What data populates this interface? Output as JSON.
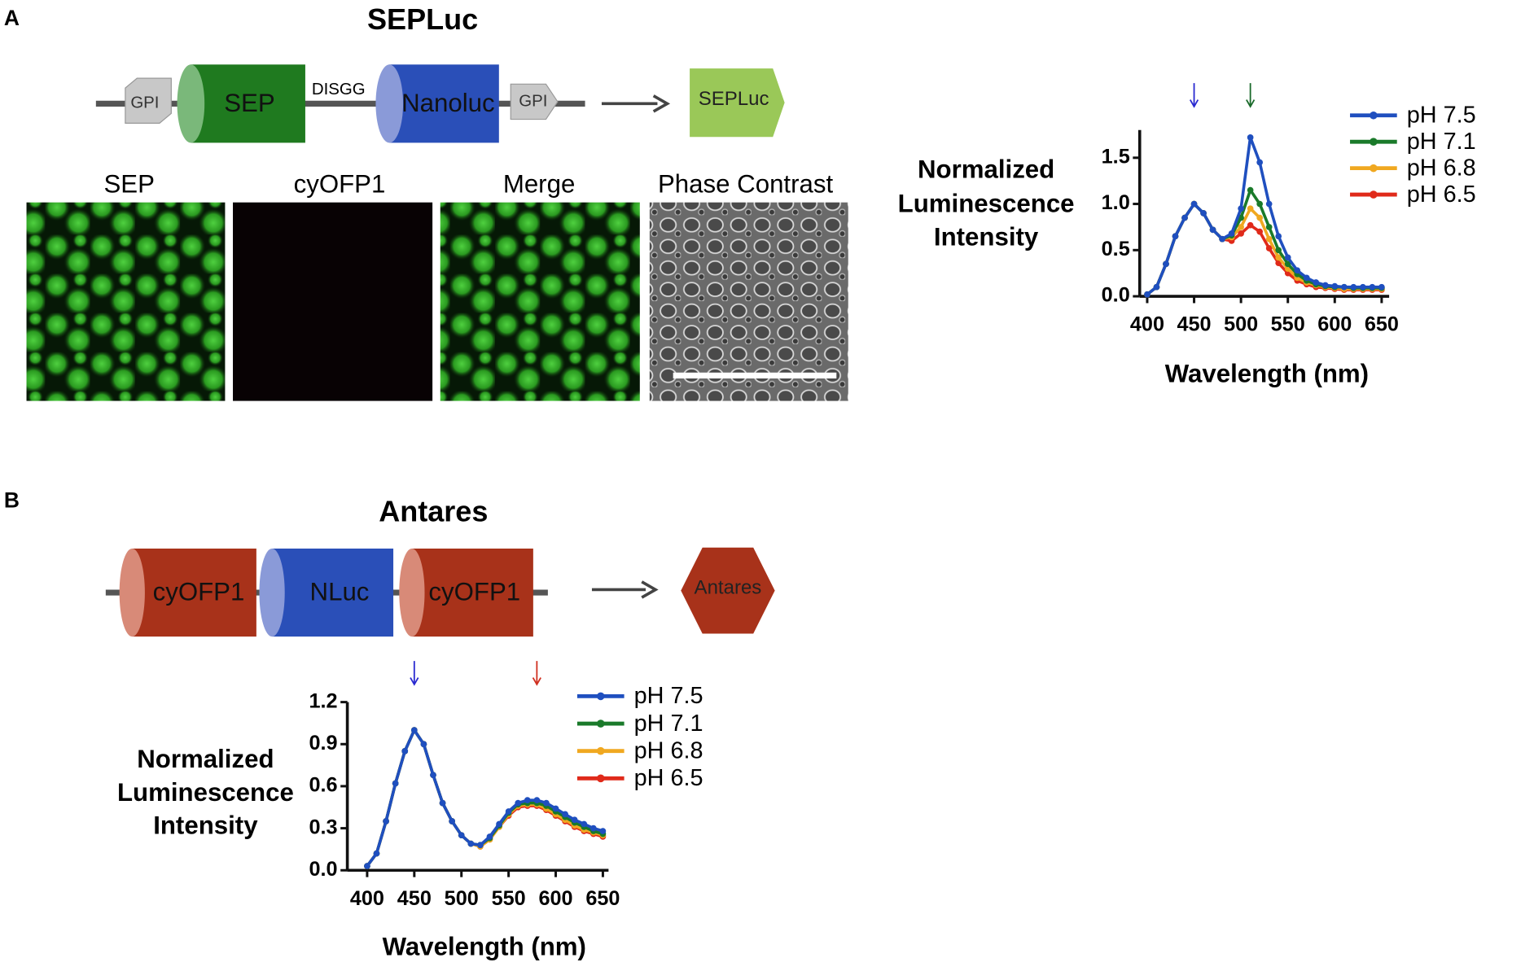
{
  "panels": [
    {
      "label": "A",
      "title": "SEPLuc",
      "construct": [
        "GPI",
        "SEP",
        "DISGG",
        "Nanoluc",
        "GPI"
      ],
      "product": "SEPLuc",
      "image_labels": [
        "SEP",
        "cyOFP1",
        "Merge",
        "Phase Contrast"
      ]
    },
    {
      "label": "B",
      "title": "Antares",
      "construct": [
        "cyOFP1",
        "NLuc",
        "cyOFP1"
      ],
      "product": "Antares"
    }
  ],
  "chart_data": [
    {
      "type": "line",
      "ylabel": [
        "Normalized",
        "Luminescence",
        "Intensity"
      ],
      "xlabel": "Wavelength (nm)",
      "x": [
        400,
        410,
        420,
        430,
        440,
        450,
        460,
        470,
        480,
        490,
        500,
        510,
        520,
        530,
        540,
        550,
        560,
        570,
        580,
        590,
        600,
        610,
        620,
        630,
        640,
        650
      ],
      "xlim": [
        392,
        658
      ],
      "ylim": [
        0,
        1.8
      ],
      "xticks": [
        400,
        450,
        500,
        550,
        600,
        650
      ],
      "yticks": [
        {
          "value": 0,
          "label": "0.0"
        },
        0.5,
        {
          "value": 1,
          "label": "1.0"
        },
        1.5
      ],
      "arrows": [
        {
          "x": 450,
          "color": "#2a2ad0"
        },
        {
          "x": 510,
          "color": "#1a6a2a"
        }
      ],
      "series": [
        {
          "name": "pH 7.5",
          "color": "#1f4fbf",
          "values": [
            0.02,
            0.1,
            0.35,
            0.65,
            0.85,
            1.0,
            0.9,
            0.72,
            0.62,
            0.68,
            0.95,
            1.72,
            1.45,
            1.0,
            0.65,
            0.42,
            0.28,
            0.2,
            0.15,
            0.12,
            0.11,
            0.1,
            0.1,
            0.1,
            0.1,
            0.1
          ]
        },
        {
          "name": "pH 7.1",
          "color": "#1a7a2a",
          "values": [
            0.02,
            0.1,
            0.35,
            0.65,
            0.85,
            1.0,
            0.9,
            0.72,
            0.62,
            0.66,
            0.85,
            1.15,
            1.0,
            0.75,
            0.5,
            0.35,
            0.24,
            0.17,
            0.13,
            0.11,
            0.1,
            0.1,
            0.09,
            0.09,
            0.09,
            0.09
          ]
        },
        {
          "name": "pH 6.8",
          "color": "#f0a820",
          "values": [
            0.02,
            0.1,
            0.35,
            0.65,
            0.85,
            1.0,
            0.9,
            0.72,
            0.62,
            0.64,
            0.75,
            0.95,
            0.85,
            0.62,
            0.42,
            0.3,
            0.2,
            0.15,
            0.12,
            0.1,
            0.09,
            0.08,
            0.08,
            0.08,
            0.08,
            0.08
          ]
        },
        {
          "name": "pH 6.5",
          "color": "#e02a1a",
          "values": [
            0.02,
            0.1,
            0.35,
            0.65,
            0.85,
            1.0,
            0.9,
            0.72,
            0.62,
            0.6,
            0.68,
            0.77,
            0.7,
            0.52,
            0.36,
            0.25,
            0.17,
            0.13,
            0.1,
            0.09,
            0.08,
            0.07,
            0.07,
            0.07,
            0.07,
            0.07
          ]
        }
      ]
    },
    {
      "type": "line",
      "ylabel": [
        "Normalized",
        "Luminescence",
        "Intensity"
      ],
      "xlabel": "Wavelength (nm)",
      "x": [
        400,
        410,
        420,
        430,
        440,
        450,
        460,
        470,
        480,
        490,
        500,
        510,
        520,
        530,
        540,
        550,
        560,
        570,
        580,
        590,
        600,
        610,
        620,
        630,
        640,
        650
      ],
      "xlim": [
        379,
        656
      ],
      "ylim": [
        0,
        1.2
      ],
      "xticks": [
        400,
        450,
        500,
        550,
        600,
        650
      ],
      "yticks": [
        {
          "value": 0,
          "label": "0.0"
        },
        0.3,
        0.6,
        0.9,
        {
          "value": 1.2,
          "label": "1.2"
        }
      ],
      "arrows": [
        {
          "x": 450,
          "color": "#2a2ad0"
        },
        {
          "x": 580,
          "color": "#d03020"
        }
      ],
      "series": [
        {
          "name": "pH 7.5",
          "color": "#1f4fbf",
          "values": [
            0.03,
            0.12,
            0.35,
            0.62,
            0.85,
            1.0,
            0.9,
            0.68,
            0.48,
            0.35,
            0.25,
            0.19,
            0.18,
            0.24,
            0.33,
            0.42,
            0.48,
            0.5,
            0.5,
            0.48,
            0.44,
            0.4,
            0.36,
            0.33,
            0.3,
            0.28
          ]
        },
        {
          "name": "pH 7.1",
          "color": "#1a7a2a",
          "values": [
            0.03,
            0.12,
            0.35,
            0.62,
            0.85,
            1.0,
            0.9,
            0.68,
            0.48,
            0.35,
            0.25,
            0.19,
            0.18,
            0.23,
            0.32,
            0.41,
            0.47,
            0.48,
            0.48,
            0.46,
            0.42,
            0.38,
            0.34,
            0.31,
            0.28,
            0.26
          ]
        },
        {
          "name": "pH 6.8",
          "color": "#f0a820",
          "values": [
            0.03,
            0.12,
            0.35,
            0.62,
            0.85,
            1.0,
            0.9,
            0.68,
            0.48,
            0.35,
            0.25,
            0.19,
            0.17,
            0.22,
            0.31,
            0.4,
            0.46,
            0.47,
            0.47,
            0.44,
            0.4,
            0.36,
            0.32,
            0.29,
            0.27,
            0.25
          ]
        },
        {
          "name": "pH 6.5",
          "color": "#e02a1a",
          "values": [
            0.03,
            0.12,
            0.35,
            0.62,
            0.85,
            1.0,
            0.9,
            0.68,
            0.48,
            0.35,
            0.25,
            0.19,
            0.17,
            0.22,
            0.31,
            0.39,
            0.45,
            0.46,
            0.46,
            0.43,
            0.39,
            0.35,
            0.31,
            0.28,
            0.26,
            0.24
          ]
        }
      ]
    }
  ]
}
